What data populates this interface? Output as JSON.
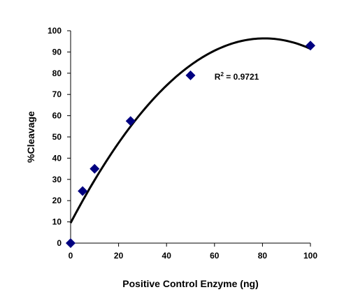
{
  "chart_data": {
    "type": "scatter",
    "xlabel": "Positive Control Enzyme (ng)",
    "ylabel": "%Cleavage",
    "xlim": [
      0,
      100
    ],
    "ylim": [
      0,
      100
    ],
    "xticks": [
      0,
      20,
      40,
      60,
      80,
      100
    ],
    "yticks": [
      0,
      10,
      20,
      30,
      40,
      50,
      60,
      70,
      80,
      90,
      100
    ],
    "grid": false,
    "series": [
      {
        "marker": "diamond",
        "color": "#000080",
        "points": [
          {
            "x": 0,
            "y": 0
          },
          {
            "x": 5,
            "y": 24.5
          },
          {
            "x": 10,
            "y": 35
          },
          {
            "x": 25,
            "y": 57.5
          },
          {
            "x": 50,
            "y": 79
          },
          {
            "x": 100,
            "y": 93
          }
        ]
      }
    ],
    "trendline": {
      "type": "polynomial-2",
      "color": "#000000",
      "coefficients": [
        9.5,
        2.15,
        -0.0133
      ],
      "x_range": [
        0,
        100
      ]
    },
    "annotation": {
      "prefix": "R",
      "superscript": "2",
      "suffix": " = 0.9721",
      "x": 60,
      "y": 77
    }
  }
}
